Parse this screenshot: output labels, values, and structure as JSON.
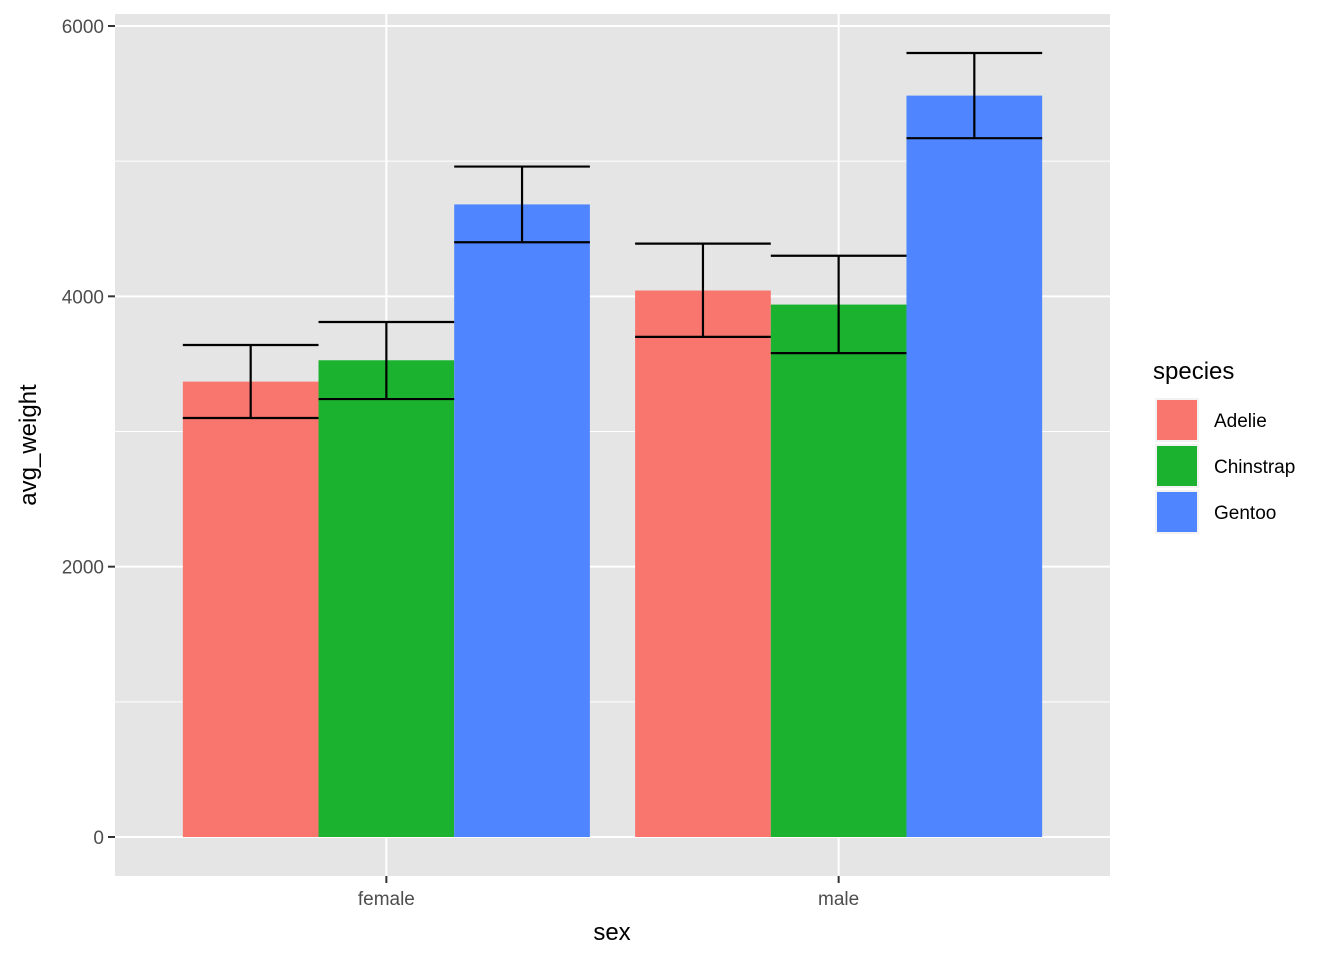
{
  "chart_data": {
    "type": "bar",
    "title": "",
    "xlabel": "sex",
    "ylabel": "avg_weight",
    "categories": [
      "female",
      "male"
    ],
    "ylim": [
      -270,
      6100
    ],
    "yticks": [
      0,
      2000,
      4000,
      6000
    ],
    "yticks_labels": [
      "0",
      "2000",
      "4000",
      "6000"
    ],
    "grid": true,
    "background": "#e5e5e5",
    "legend": {
      "title": "species",
      "position": "right"
    },
    "series": [
      {
        "name": "Adelie",
        "color": "#f8766d",
        "values": [
          3369,
          4043
        ],
        "error_low": [
          3100,
          3700
        ],
        "error_high": [
          3640,
          4390
        ]
      },
      {
        "name": "Chinstrap",
        "color": "#1bb22f",
        "values": [
          3527,
          3939
        ],
        "error_low": [
          3240,
          3580
        ],
        "error_high": [
          3810,
          4300
        ]
      },
      {
        "name": "Gentoo",
        "color": "#4f86ff",
        "values": [
          4680,
          5485
        ],
        "error_low": [
          4400,
          5170
        ],
        "error_high": [
          4960,
          5800
        ]
      }
    ]
  }
}
